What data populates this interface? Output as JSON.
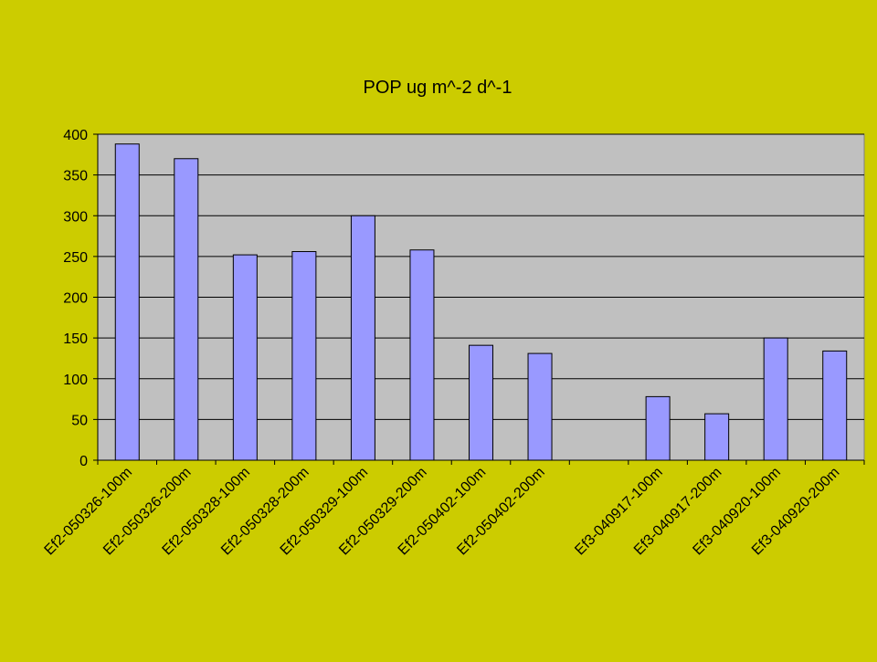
{
  "colors": {
    "background": "#cccc00",
    "plot_area": "#c0c0c0",
    "bar_fill": "#9999ff",
    "bar_stroke": "#000000",
    "gridline": "#000000"
  },
  "chart_data": {
    "type": "bar",
    "title": "POP ug m^-2 d^-1",
    "xlabel": "",
    "ylabel": "",
    "ylim": [
      0,
      400
    ],
    "yticks": [
      0,
      50,
      100,
      150,
      200,
      250,
      300,
      350,
      400
    ],
    "grid": true,
    "legend": "none",
    "categories": [
      "Ef2-050326-100m",
      "Ef2-050326-200m",
      "Ef2-050328-100m",
      "Ef2-050328-200m",
      "Ef2-050329-100m",
      "Ef2-050329-200m",
      "Ef2-050402-100m",
      "Ef2-050402-200m",
      "",
      "Ef3-040917-100m",
      "Ef3-040917-200m",
      "Ef3-040920-100m",
      "Ef3-040920-200m"
    ],
    "values": [
      388,
      370,
      252,
      256,
      300,
      258,
      141,
      131,
      null,
      78,
      57,
      150,
      134
    ]
  }
}
